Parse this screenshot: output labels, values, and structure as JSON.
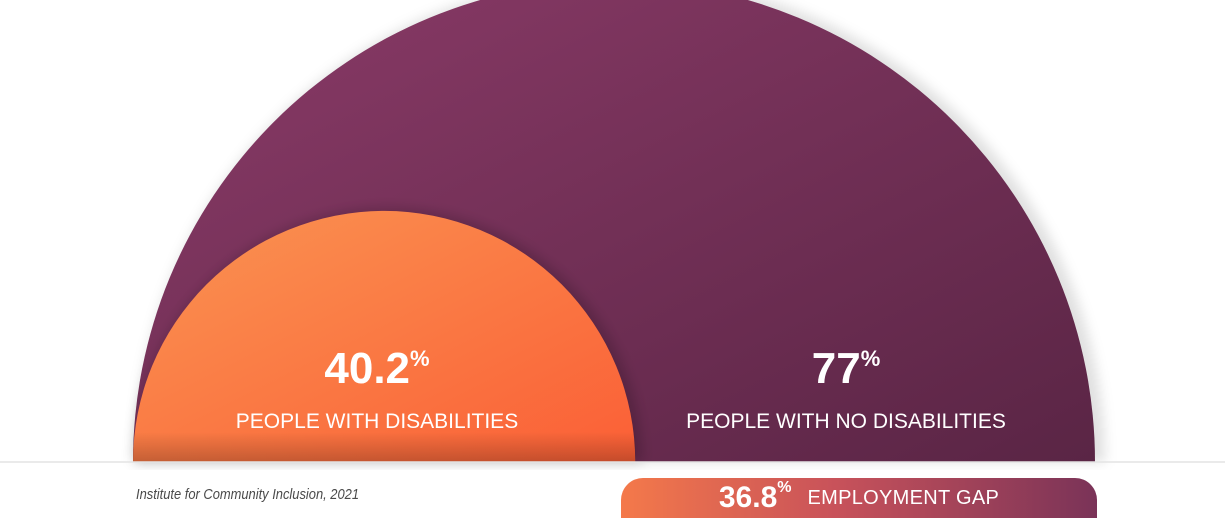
{
  "chart_data": {
    "type": "area",
    "title": "",
    "series": [
      {
        "name": "PEOPLE WITH NO DISABILITIES",
        "value": 77,
        "value_label": "77",
        "unit": "%",
        "color": "#7a3358"
      },
      {
        "name": "PEOPLE WITH DISABILITIES",
        "value": 40.2,
        "value_label": "40.2",
        "unit": "%",
        "color": "#f4794a"
      }
    ],
    "gap": {
      "value_label": "36.8",
      "unit": "%",
      "label": "EMPLOYMENT GAP"
    },
    "source": "Institute for Community Inclusion, 2021"
  }
}
